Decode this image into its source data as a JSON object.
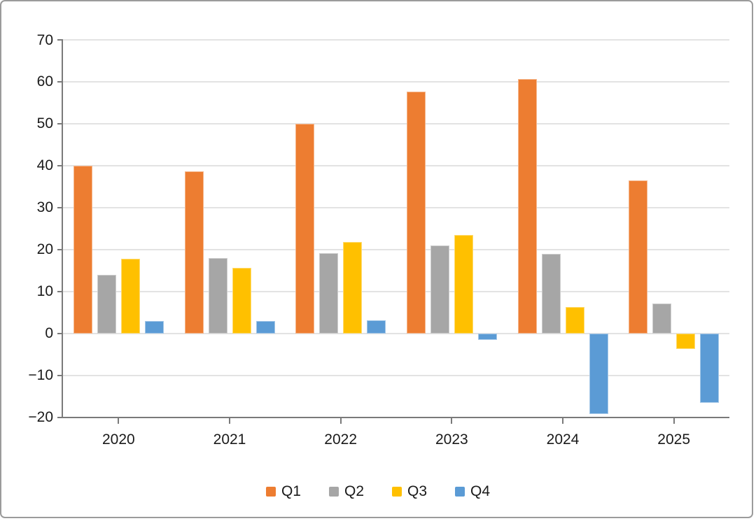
{
  "chart_data": {
    "type": "bar",
    "title": "",
    "xlabel": "",
    "ylabel": "",
    "categories": [
      "2020",
      "2021",
      "2022",
      "2023",
      "2024",
      "2025"
    ],
    "series": [
      {
        "name": "Q1",
        "color": "#ED7D31",
        "values": [
          40,
          38.7,
          50,
          57.7,
          60.6,
          36.4
        ]
      },
      {
        "name": "Q2",
        "color": "#A6A6A6",
        "values": [
          14,
          18,
          19.1,
          21,
          19,
          7.1
        ]
      },
      {
        "name": "Q3",
        "color": "#FFC000",
        "values": [
          17.8,
          15.6,
          21.8,
          23.4,
          6.3,
          -3.8
        ]
      },
      {
        "name": "Q4",
        "color": "#5B9BD5",
        "values": [
          3,
          3,
          3.1,
          -1.6,
          -19.2,
          -16.6
        ]
      }
    ],
    "ylim": [
      -20,
      70
    ],
    "ytick_step": 10,
    "ytick_labels": [
      "70",
      "60",
      "50",
      "40",
      "30",
      "20",
      "10",
      "0",
      "−10",
      "−20"
    ],
    "grid": true,
    "legend_position": "bottom"
  },
  "colors": {
    "axis": "#7A7A7A",
    "gridline": "#E3E3E3",
    "text": "#1A1A1A",
    "frame_border": "#9B9B9B",
    "background": "#FFFFFF"
  }
}
